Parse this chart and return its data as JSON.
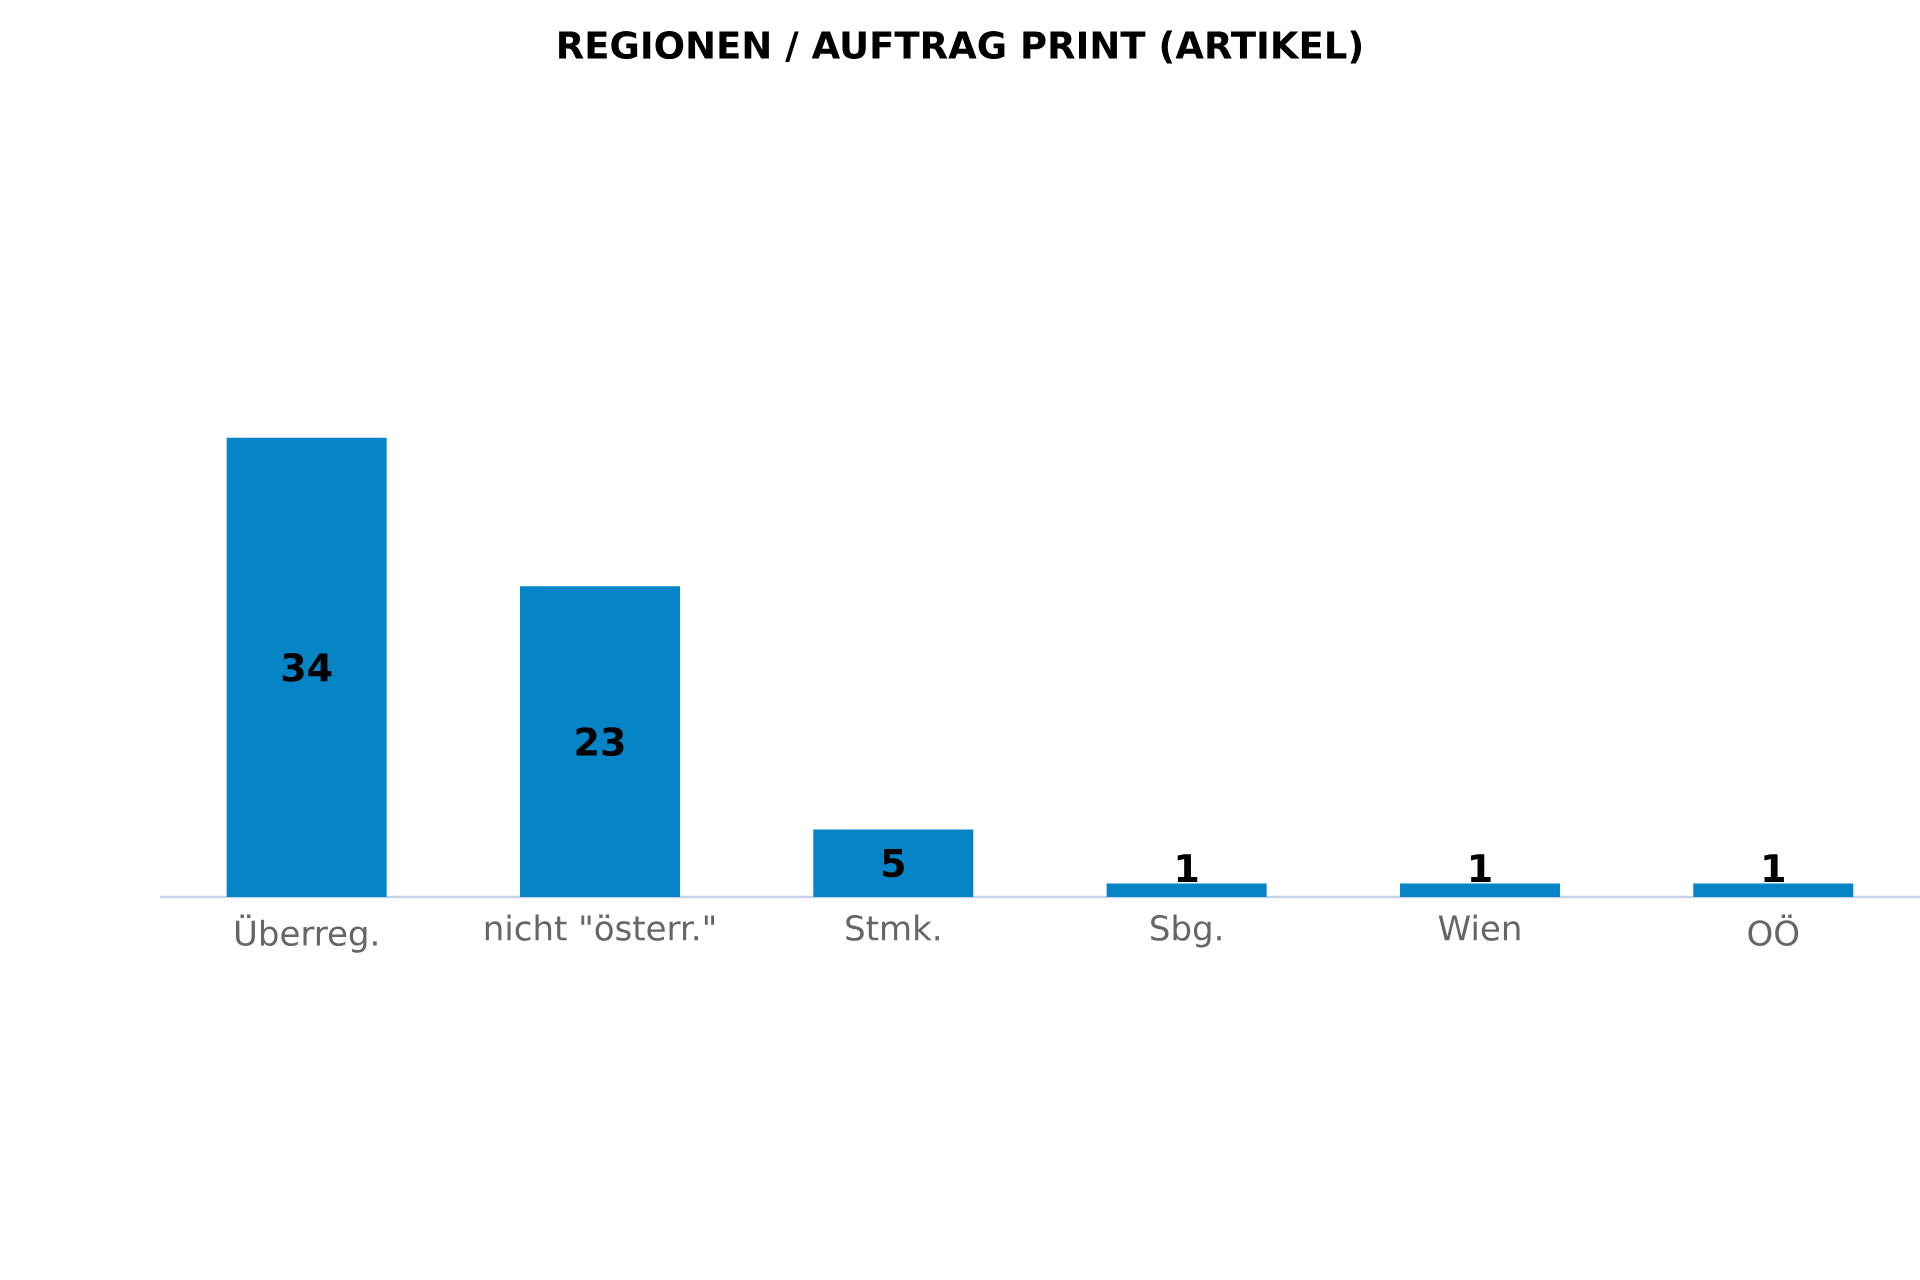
{
  "chart_data": {
    "type": "bar",
    "title": "REGIONEN / AUFTRAG PRINT (ARTIKEL)",
    "categories": [
      "Überreg.",
      "nicht \"österr.\"",
      "Stmk.",
      "Sbg.",
      "Wien",
      "OÖ"
    ],
    "values": [
      34,
      23,
      5,
      1,
      1,
      1
    ],
    "color": "#0584c6",
    "data_labels": true
  }
}
